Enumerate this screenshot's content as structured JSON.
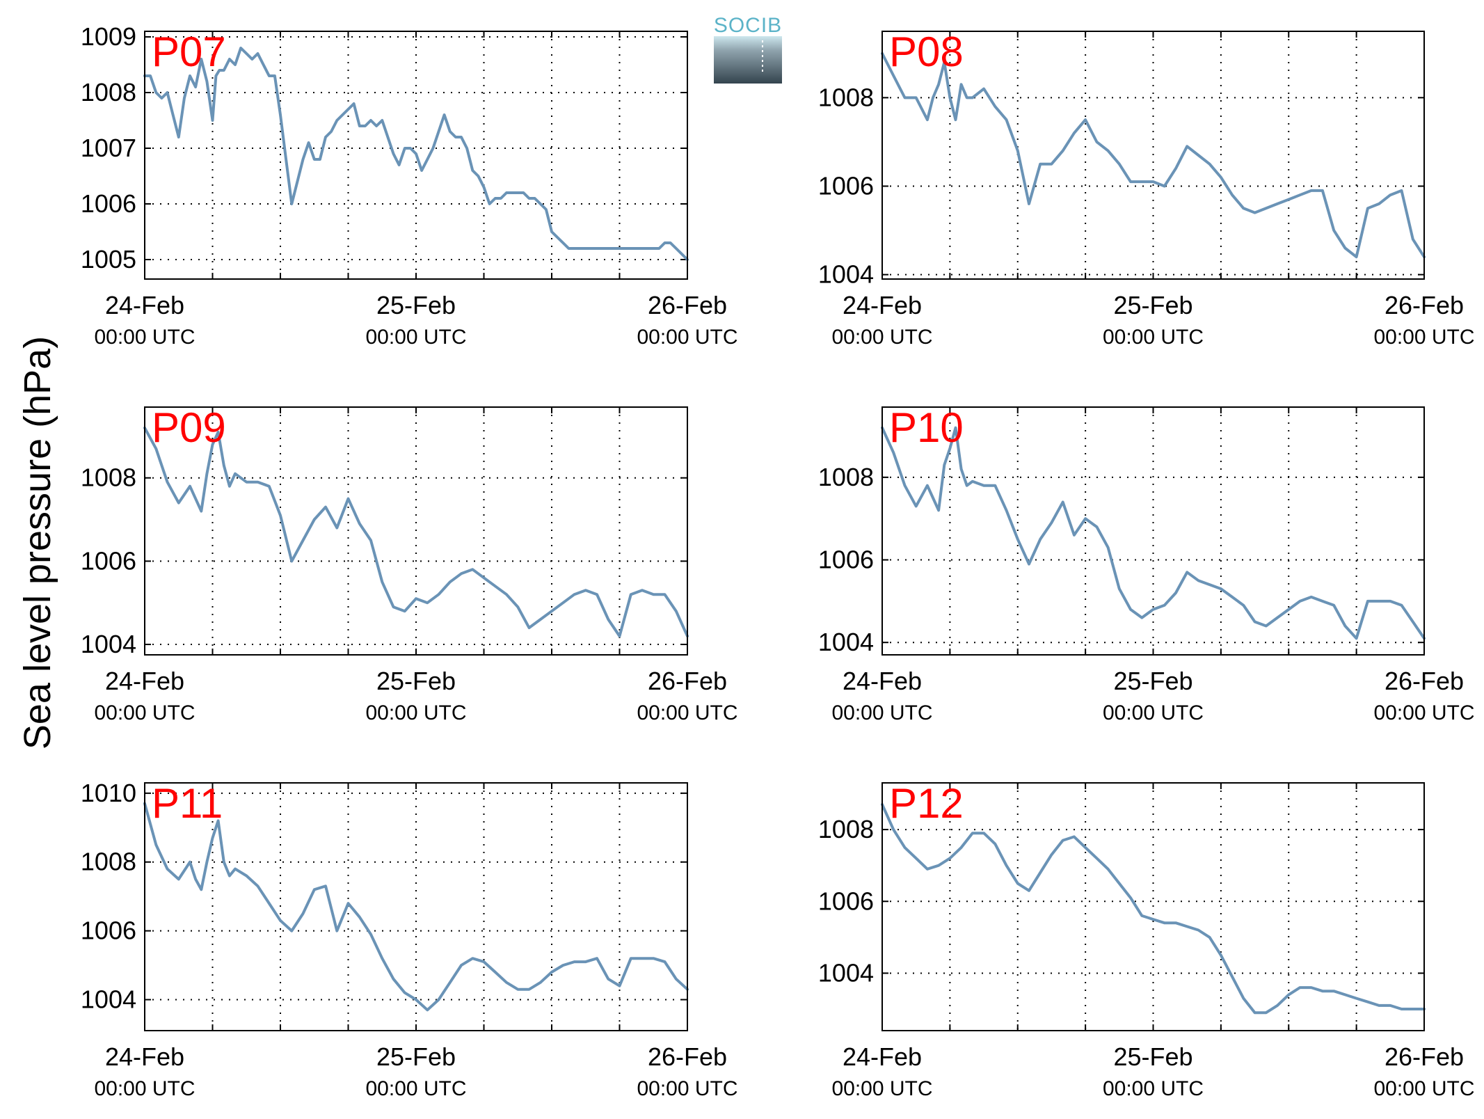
{
  "figure": {
    "ylabel": "Sea level pressure (hPa)",
    "logo_text": "SOCIB",
    "colors": {
      "line": "#6a93b6",
      "panel_name": "#ff0000",
      "axis": "#000000",
      "grid": "#000000"
    },
    "xticks": [
      {
        "date": "24-Feb",
        "time": "00:00 UTC",
        "hours": 0
      },
      {
        "date": "25-Feb",
        "time": "00:00 UTC",
        "hours": 24
      },
      {
        "date": "26-Feb",
        "time": "00:00 UTC",
        "hours": 48
      }
    ],
    "minor_grid_hours": [
      6,
      12,
      18,
      30,
      36,
      42
    ]
  },
  "chart_data": [
    {
      "type": "line",
      "name": "P07",
      "xlabel": "",
      "ylabel": "Sea level pressure (hPa)",
      "xlim": [
        0,
        48
      ],
      "ylim": [
        1004.65,
        1009.1
      ],
      "yticks": [
        1005,
        1006,
        1007,
        1008,
        1009
      ],
      "grid": true,
      "x": [
        0,
        0.5,
        1,
        1.5,
        2,
        2.5,
        3,
        3.5,
        4,
        4.5,
        5,
        5.5,
        6,
        6.3,
        6.6,
        7,
        7.5,
        8,
        8.5,
        9,
        9.5,
        10,
        10.5,
        11,
        11.5,
        12,
        12.5,
        13,
        13.5,
        14,
        14.5,
        15,
        15.5,
        16,
        16.5,
        17,
        17.5,
        18,
        18.5,
        19,
        19.5,
        20,
        20.5,
        21,
        21.5,
        22,
        22.5,
        23,
        23.5,
        24,
        24.5,
        25,
        25.5,
        26,
        26.5,
        27,
        27.5,
        28,
        28.5,
        29,
        29.5,
        30,
        30.5,
        31,
        31.5,
        32,
        32.5,
        33,
        33.5,
        34,
        34.5,
        35,
        35.5,
        36,
        36.5,
        37,
        37.5,
        38,
        38.5,
        39,
        39.5,
        40,
        40.5,
        41,
        41.5,
        42,
        42.5,
        43,
        43.5,
        44,
        44.5,
        45,
        45.5,
        46,
        46.5,
        47,
        47.5,
        48
      ],
      "y": [
        1008.3,
        1008.3,
        1008.0,
        1007.9,
        1008.0,
        1007.6,
        1007.2,
        1007.9,
        1008.3,
        1008.1,
        1008.6,
        1008.2,
        1007.5,
        1008.3,
        1008.4,
        1008.4,
        1008.6,
        1008.5,
        1008.8,
        1008.7,
        1008.6,
        1008.7,
        1008.5,
        1008.3,
        1008.3,
        1007.6,
        1006.8,
        1006.0,
        1006.4,
        1006.8,
        1007.1,
        1006.8,
        1006.8,
        1007.2,
        1007.3,
        1007.5,
        1007.6,
        1007.7,
        1007.8,
        1007.4,
        1007.4,
        1007.5,
        1007.4,
        1007.5,
        1007.2,
        1006.9,
        1006.7,
        1007.0,
        1007.0,
        1006.9,
        1006.6,
        1006.8,
        1007.0,
        1007.3,
        1007.6,
        1007.3,
        1007.2,
        1007.2,
        1007.0,
        1006.6,
        1006.5,
        1006.3,
        1006.0,
        1006.1,
        1006.1,
        1006.2,
        1006.2,
        1006.2,
        1006.2,
        1006.1,
        1006.1,
        1006.0,
        1005.9,
        1005.5,
        1005.4,
        1005.3,
        1005.2,
        1005.2,
        1005.2,
        1005.2,
        1005.2,
        1005.2,
        1005.2,
        1005.2,
        1005.2,
        1005.2,
        1005.2,
        1005.2,
        1005.2,
        1005.2,
        1005.2,
        1005.2,
        1005.2,
        1005.3,
        1005.3,
        1005.2,
        1005.1,
        1005.0
      ]
    },
    {
      "type": "line",
      "name": "P08",
      "xlabel": "",
      "ylabel": "Sea level pressure (hPa)",
      "xlim": [
        0,
        48
      ],
      "ylim": [
        1003.9,
        1009.5
      ],
      "yticks": [
        1004,
        1006,
        1008
      ],
      "grid": true,
      "x": [
        0,
        1,
        2,
        3,
        4,
        4.5,
        5,
        5.5,
        6,
        6.5,
        7,
        7.5,
        8,
        9,
        10,
        11,
        12,
        13,
        14,
        15,
        16,
        17,
        18,
        19,
        20,
        21,
        22,
        23,
        24,
        25,
        26,
        27,
        28,
        29,
        30,
        31,
        32,
        33,
        34,
        35,
        36,
        37,
        38,
        39,
        40,
        41,
        42,
        43,
        44,
        45,
        46,
        47,
        48
      ],
      "y": [
        1009.0,
        1008.5,
        1008.0,
        1008.0,
        1007.5,
        1008.0,
        1008.3,
        1008.8,
        1008.0,
        1007.5,
        1008.3,
        1008.0,
        1008.0,
        1008.2,
        1007.8,
        1007.5,
        1006.8,
        1005.6,
        1006.5,
        1006.5,
        1006.8,
        1007.2,
        1007.5,
        1007.0,
        1006.8,
        1006.5,
        1006.1,
        1006.1,
        1006.1,
        1006.0,
        1006.4,
        1006.9,
        1006.7,
        1006.5,
        1006.2,
        1005.8,
        1005.5,
        1005.4,
        1005.5,
        1005.6,
        1005.7,
        1005.8,
        1005.9,
        1005.9,
        1005.0,
        1004.6,
        1004.4,
        1005.5,
        1005.6,
        1005.8,
        1005.9,
        1004.8,
        1004.4
      ]
    },
    {
      "type": "line",
      "name": "P09",
      "xlabel": "",
      "ylabel": "Sea level pressure (hPa)",
      "xlim": [
        0,
        48
      ],
      "ylim": [
        1003.75,
        1009.7
      ],
      "yticks": [
        1004,
        1006,
        1008
      ],
      "grid": true,
      "x": [
        0,
        1,
        2,
        3,
        4,
        4.5,
        5,
        5.5,
        6,
        6.5,
        7,
        7.5,
        8,
        9,
        10,
        11,
        12,
        13,
        14,
        15,
        16,
        17,
        18,
        19,
        20,
        21,
        22,
        23,
        24,
        25,
        26,
        27,
        28,
        29,
        30,
        31,
        32,
        33,
        34,
        35,
        36,
        37,
        38,
        39,
        40,
        41,
        42,
        43,
        44,
        45,
        46,
        47,
        48
      ],
      "y": [
        1009.2,
        1008.7,
        1007.9,
        1007.4,
        1007.8,
        1007.5,
        1007.2,
        1008.1,
        1008.8,
        1009.1,
        1008.3,
        1007.8,
        1008.1,
        1007.9,
        1007.9,
        1007.8,
        1007.1,
        1006.0,
        1006.5,
        1007.0,
        1007.3,
        1006.8,
        1007.5,
        1006.9,
        1006.5,
        1005.5,
        1004.9,
        1004.8,
        1005.1,
        1005.0,
        1005.2,
        1005.5,
        1005.7,
        1005.8,
        1005.6,
        1005.4,
        1005.2,
        1004.9,
        1004.4,
        1004.6,
        1004.8,
        1005.0,
        1005.2,
        1005.3,
        1005.2,
        1004.6,
        1004.2,
        1005.2,
        1005.3,
        1005.2,
        1005.2,
        1004.8,
        1004.2
      ]
    },
    {
      "type": "line",
      "name": "P10",
      "xlabel": "",
      "ylabel": "Sea level pressure (hPa)",
      "xlim": [
        0,
        48
      ],
      "ylim": [
        1003.7,
        1009.7
      ],
      "yticks": [
        1004,
        1006,
        1008
      ],
      "grid": true,
      "x": [
        0,
        1,
        2,
        3,
        4,
        4.5,
        5,
        5.5,
        6,
        6.5,
        7,
        7.5,
        8,
        9,
        10,
        11,
        12,
        13,
        14,
        15,
        16,
        17,
        18,
        19,
        20,
        21,
        22,
        23,
        24,
        25,
        26,
        27,
        28,
        29,
        30,
        31,
        32,
        33,
        34,
        35,
        36,
        37,
        38,
        39,
        40,
        41,
        42,
        43,
        44,
        45,
        46,
        47,
        48
      ],
      "y": [
        1009.2,
        1008.6,
        1007.8,
        1007.3,
        1007.8,
        1007.5,
        1007.2,
        1008.3,
        1008.7,
        1009.2,
        1008.2,
        1007.8,
        1007.9,
        1007.8,
        1007.8,
        1007.2,
        1006.5,
        1005.9,
        1006.5,
        1006.9,
        1007.4,
        1006.6,
        1007.0,
        1006.8,
        1006.3,
        1005.3,
        1004.8,
        1004.6,
        1004.8,
        1004.9,
        1005.2,
        1005.7,
        1005.5,
        1005.4,
        1005.3,
        1005.1,
        1004.9,
        1004.5,
        1004.4,
        1004.6,
        1004.8,
        1005.0,
        1005.1,
        1005.0,
        1004.9,
        1004.4,
        1004.1,
        1005.0,
        1005.0,
        1005.0,
        1004.9,
        1004.5,
        1004.1
      ]
    },
    {
      "type": "line",
      "name": "P11",
      "xlabel": "",
      "ylabel": "Sea level pressure (hPa)",
      "xlim": [
        0,
        48
      ],
      "ylim": [
        1003.1,
        1010.3
      ],
      "yticks": [
        1004,
        1006,
        1008,
        1010
      ],
      "grid": true,
      "x": [
        0,
        1,
        2,
        3,
        4,
        4.5,
        5,
        5.5,
        6,
        6.5,
        7,
        7.5,
        8,
        9,
        10,
        11,
        12,
        13,
        14,
        15,
        16,
        17,
        18,
        19,
        20,
        21,
        22,
        23,
        24,
        25,
        26,
        27,
        28,
        29,
        30,
        31,
        32,
        33,
        34,
        35,
        36,
        37,
        38,
        39,
        40,
        41,
        42,
        43,
        44,
        45,
        46,
        47,
        48
      ],
      "y": [
        1009.7,
        1008.5,
        1007.8,
        1007.5,
        1008.0,
        1007.5,
        1007.2,
        1008.0,
        1008.7,
        1009.2,
        1008.0,
        1007.6,
        1007.8,
        1007.6,
        1007.3,
        1006.8,
        1006.3,
        1006.0,
        1006.5,
        1007.2,
        1007.3,
        1006.0,
        1006.8,
        1006.4,
        1005.9,
        1005.2,
        1004.6,
        1004.2,
        1004.0,
        1003.7,
        1004.0,
        1004.5,
        1005.0,
        1005.2,
        1005.1,
        1004.8,
        1004.5,
        1004.3,
        1004.3,
        1004.5,
        1004.8,
        1005.0,
        1005.1,
        1005.1,
        1005.2,
        1004.6,
        1004.4,
        1005.2,
        1005.2,
        1005.2,
        1005.1,
        1004.6,
        1004.3
      ]
    },
    {
      "type": "line",
      "name": "P12",
      "xlabel": "",
      "ylabel": "Sea level pressure (hPa)",
      "xlim": [
        0,
        48
      ],
      "ylim": [
        1002.4,
        1009.3
      ],
      "yticks": [
        1004,
        1006,
        1008
      ],
      "grid": true,
      "x": [
        0,
        1,
        2,
        3,
        4,
        5,
        6,
        7,
        8,
        9,
        10,
        11,
        12,
        13,
        14,
        15,
        16,
        17,
        18,
        19,
        20,
        21,
        22,
        23,
        24,
        25,
        26,
        27,
        28,
        29,
        30,
        31,
        32,
        33,
        34,
        35,
        36,
        37,
        38,
        39,
        40,
        41,
        42,
        43,
        44,
        45,
        46,
        47,
        48
      ],
      "y": [
        1008.7,
        1008.0,
        1007.5,
        1007.2,
        1006.9,
        1007.0,
        1007.2,
        1007.5,
        1007.9,
        1007.9,
        1007.6,
        1007.0,
        1006.5,
        1006.3,
        1006.8,
        1007.3,
        1007.7,
        1007.8,
        1007.5,
        1007.2,
        1006.9,
        1006.5,
        1006.1,
        1005.6,
        1005.5,
        1005.4,
        1005.4,
        1005.3,
        1005.2,
        1005.0,
        1004.5,
        1003.9,
        1003.3,
        1002.9,
        1002.9,
        1003.1,
        1003.4,
        1003.6,
        1003.6,
        1003.5,
        1003.5,
        1003.4,
        1003.3,
        1003.2,
        1003.1,
        1003.1,
        1003.0,
        1003.0,
        1003.0
      ]
    }
  ]
}
